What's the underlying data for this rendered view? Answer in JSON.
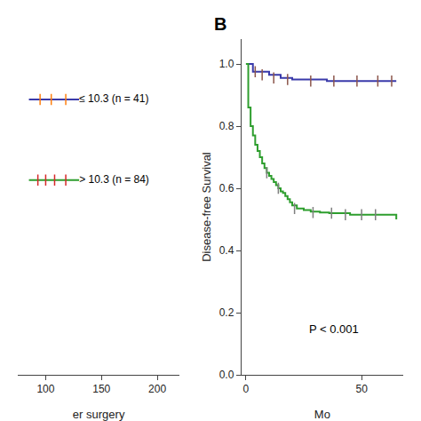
{
  "chart_data": [
    {
      "type": "line",
      "xlabel": "er surgery",
      "xlim": [
        75,
        220
      ],
      "xticks": [
        100,
        150,
        200
      ],
      "ylim": [
        0.0,
        1.0
      ],
      "tick_labels": "x",
      "grid": false,
      "series": [
        {
          "name": "≤ 10.3 (n = 41)",
          "color": "#3a3aaa",
          "x": [
            85,
            130
          ],
          "values": [
            0.82,
            0.82
          ],
          "censor_x": [
            95,
            105,
            118
          ],
          "censor_y": [
            0.82,
            0.82,
            0.82
          ]
        },
        {
          "name": "> 10.3 (n = 84)",
          "color": "#2e9e2e",
          "x": [
            85,
            130
          ],
          "values": [
            0.58,
            0.58
          ],
          "censor_x": [
            93,
            100,
            108,
            118
          ],
          "censor_y": [
            0.58,
            0.58,
            0.58,
            0.58
          ]
        }
      ]
    },
    {
      "type": "line",
      "line_style": "step",
      "title": "B",
      "ylabel": "Disease-free Survival",
      "xlabel": "Mo",
      "xlim": [
        -2,
        68
      ],
      "ylim": [
        0.0,
        1.08
      ],
      "xticks": [
        0,
        50
      ],
      "yticks": [
        {
          "value": 0.0,
          "label": "0.0"
        },
        0.2,
        0.4,
        0.6,
        0.8,
        {
          "value": 1.0,
          "label": "1.0"
        }
      ],
      "grid": false,
      "annotations": [
        {
          "text": "P < 0.001",
          "x": 38,
          "y": 0.12
        }
      ],
      "series": [
        {
          "color": "#3a3aaa",
          "x": [
            0,
            2,
            3,
            5,
            10,
            15,
            20,
            25,
            35,
            45,
            55,
            65
          ],
          "values": [
            1.0,
            1.0,
            0.975,
            0.975,
            0.965,
            0.955,
            0.95,
            0.95,
            0.945,
            0.945,
            0.945,
            0.945
          ],
          "censor_x": [
            4,
            7,
            12,
            18,
            28,
            38,
            48,
            57,
            63
          ],
          "censor_y": [
            0.975,
            0.965,
            0.955,
            0.95,
            0.945,
            0.945,
            0.945,
            0.945,
            0.945
          ]
        },
        {
          "color": "#2e9e2e",
          "x": [
            0,
            1,
            2,
            3,
            4,
            5,
            6,
            7,
            8,
            9,
            10,
            11,
            12,
            13,
            14,
            15,
            16,
            17,
            18,
            19,
            20,
            22,
            25,
            28,
            32,
            36,
            40,
            45,
            50,
            55,
            60,
            65
          ],
          "values": [
            1.0,
            0.86,
            0.8,
            0.77,
            0.74,
            0.72,
            0.7,
            0.68,
            0.665,
            0.65,
            0.64,
            0.63,
            0.62,
            0.61,
            0.6,
            0.59,
            0.585,
            0.575,
            0.565,
            0.555,
            0.545,
            0.535,
            0.53,
            0.525,
            0.522,
            0.52,
            0.52,
            0.515,
            0.515,
            0.515,
            0.515,
            0.5
          ],
          "censor_x": [
            9,
            14,
            21,
            29,
            37,
            43,
            50,
            56
          ],
          "censor_y": [
            0.65,
            0.6,
            0.535,
            0.522,
            0.52,
            0.515,
            0.515,
            0.515
          ]
        }
      ]
    }
  ]
}
